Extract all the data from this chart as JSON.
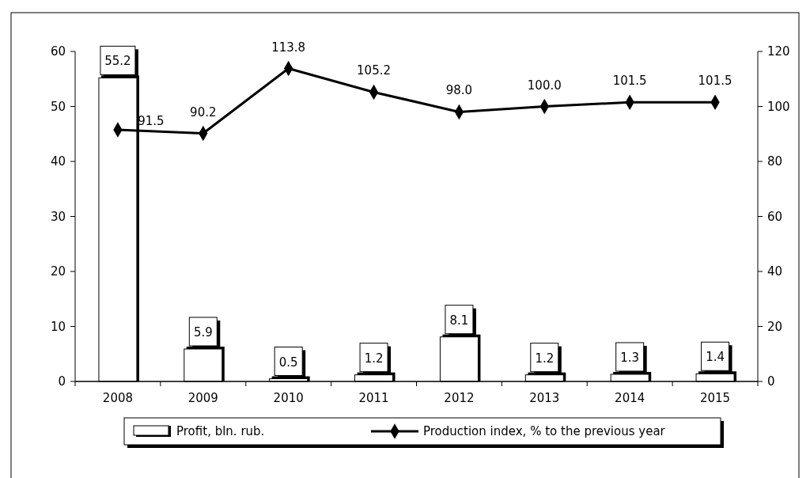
{
  "chart_data": {
    "type": "bar",
    "categories": [
      "2008",
      "2009",
      "2010",
      "2011",
      "2012",
      "2013",
      "2014",
      "2015"
    ],
    "series": [
      {
        "name": "Profit, bln. rub.",
        "color": "#ffffff",
        "values": [
          55.2,
          5.9,
          0.5,
          1.2,
          8.1,
          1.2,
          1.3,
          1.4
        ],
        "value_labels": [
          "55.2",
          "5.9",
          "0.5",
          "1.2",
          "8.1",
          "1.2",
          "1.3",
          "1.4"
        ]
      },
      {
        "name": "Production index, % to the previous year",
        "type": "line",
        "axis": "y2",
        "color": "#000000",
        "marker": "diamond",
        "values": [
          91.5,
          90.2,
          113.8,
          105.2,
          98.0,
          100.0,
          101.5,
          101.5
        ],
        "value_labels": [
          "91.5",
          "90.2",
          "113.8",
          "105.2",
          "98.0",
          "100.0",
          "101.5",
          "101.5"
        ]
      }
    ],
    "ylim": [
      0,
      60
    ],
    "yticks": [
      0,
      10,
      20,
      30,
      40,
      50,
      60
    ],
    "y2lim": [
      0,
      120
    ],
    "y2ticks": [
      0,
      20,
      40,
      60,
      80,
      100,
      120
    ],
    "legend": "bottom"
  }
}
